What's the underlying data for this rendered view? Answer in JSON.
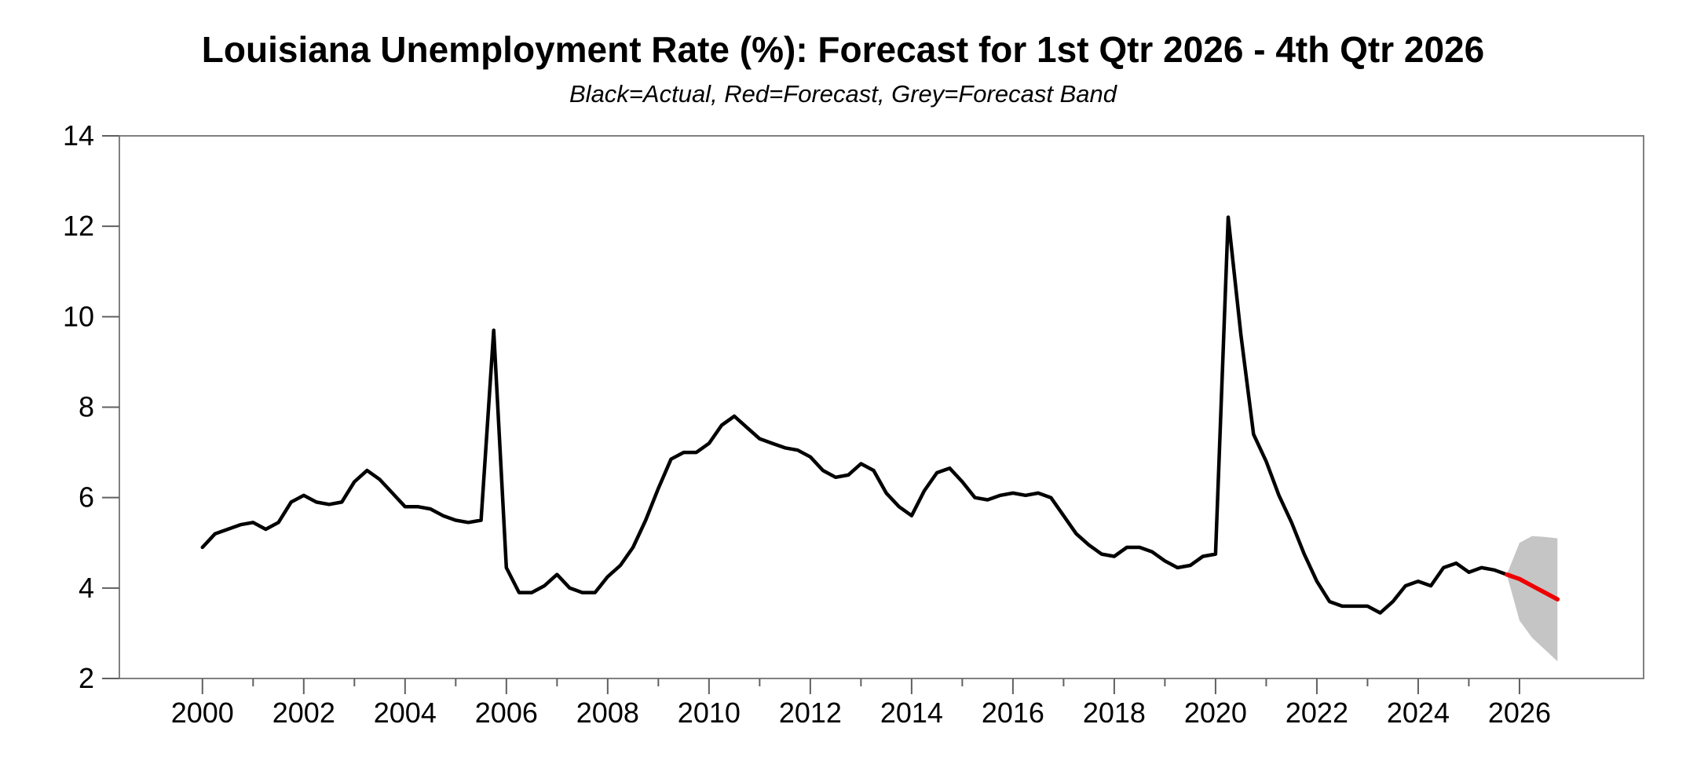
{
  "title": "Louisiana Unemployment Rate (%): Forecast for 1st Qtr 2026 - 4th Qtr 2026",
  "subtitle": "Black=Actual, Red=Forecast, Grey=Forecast Band",
  "colors": {
    "actual_line": "#000000",
    "forecast_line": "#ee0000",
    "forecast_band": "#c5c5c5",
    "frame": "#808080",
    "tick": "#606060",
    "label": "#000000",
    "background": "#ffffff"
  },
  "chart_data": {
    "type": "line",
    "title": "Louisiana Unemployment Rate (%): Forecast for 1st Qtr 2026 - 4th Qtr 2026",
    "subtitle": "Black=Actual, Red=Forecast, Grey=Forecast Band",
    "xlabel": "",
    "ylabel": "",
    "xlim": [
      1998.36,
      2028.45
    ],
    "ylim": [
      2,
      14
    ],
    "y_ticks": [
      2,
      4,
      6,
      8,
      10,
      12,
      14
    ],
    "y_tick_labels": [
      "2",
      "4",
      "6",
      "8",
      "10",
      "12",
      "14"
    ],
    "x_major_ticks": [
      2000,
      2002,
      2004,
      2006,
      2008,
      2010,
      2012,
      2014,
      2016,
      2018,
      2020,
      2022,
      2024,
      2026
    ],
    "x_major_tick_labels": [
      "2000",
      "2002",
      "2004",
      "2006",
      "2008",
      "2010",
      "2012",
      "2014",
      "2016",
      "2018",
      "2020",
      "2022",
      "2024",
      "2026"
    ],
    "x_minor_ticks": [
      2001,
      2003,
      2005,
      2007,
      2009,
      2011,
      2013,
      2015,
      2017,
      2019,
      2021,
      2023,
      2025
    ],
    "grid": false,
    "legend_position": "none",
    "frequency": "quarterly",
    "series": [
      {
        "name": "Actual",
        "role": "actual",
        "color_key": "actual_line",
        "start_year": 2000,
        "start_quarter": 1,
        "values": [
          4.9,
          5.2,
          5.3,
          5.4,
          5.45,
          5.3,
          5.45,
          5.9,
          6.05,
          5.9,
          5.85,
          5.9,
          6.35,
          6.6,
          6.4,
          6.1,
          5.8,
          5.8,
          5.75,
          5.6,
          5.5,
          5.45,
          5.5,
          9.7,
          4.45,
          3.9,
          3.9,
          4.05,
          4.3,
          4.0,
          3.9,
          3.9,
          4.25,
          4.5,
          4.9,
          5.5,
          6.2,
          6.85,
          7.0,
          7.0,
          7.2,
          7.6,
          7.8,
          7.55,
          7.3,
          7.2,
          7.1,
          7.05,
          6.9,
          6.6,
          6.45,
          6.5,
          6.75,
          6.6,
          6.1,
          5.8,
          5.6,
          6.15,
          6.55,
          6.65,
          6.35,
          6.0,
          5.95,
          6.05,
          6.1,
          6.05,
          6.1,
          6.0,
          5.6,
          5.2,
          4.95,
          4.75,
          4.7,
          4.9,
          4.9,
          4.8,
          4.6,
          4.45,
          4.5,
          4.7,
          4.75,
          12.2,
          9.6,
          7.4,
          6.8,
          6.05,
          5.45,
          4.75,
          4.15,
          3.7,
          3.6,
          3.6,
          3.6,
          3.45,
          3.7,
          4.05,
          4.15,
          4.05,
          4.45,
          4.55,
          4.35,
          4.45,
          4.4,
          4.3
        ],
        "notable_points": {
          "katrina_spike_2005Q4": 9.7,
          "covid_spike_2020Q2": 12.2,
          "last_actual_2025Q4": 4.3
        }
      },
      {
        "name": "Forecast",
        "role": "forecast",
        "color_key": "forecast_line",
        "start_year": 2025,
        "start_quarter": 4,
        "periods": [
          "2025Q4",
          "2026Q1",
          "2026Q2",
          "2026Q3",
          "2026Q4"
        ],
        "values": [
          4.3,
          4.2,
          4.05,
          3.9,
          3.75
        ]
      },
      {
        "name": "Forecast band upper",
        "role": "band-upper",
        "color_key": "forecast_band",
        "start_year": 2025,
        "start_quarter": 4,
        "periods": [
          "2025Q4",
          "2026Q1",
          "2026Q2",
          "2026Q3",
          "2026Q4"
        ],
        "values": [
          4.3,
          5.0,
          5.15,
          5.13,
          5.1
        ]
      },
      {
        "name": "Forecast band lower",
        "role": "band-lower",
        "color_key": "forecast_band",
        "start_year": 2025,
        "start_quarter": 4,
        "periods": [
          "2025Q4",
          "2026Q1",
          "2026Q2",
          "2026Q3",
          "2026Q4"
        ],
        "values": [
          4.3,
          3.28,
          2.9,
          2.64,
          2.38
        ]
      }
    ]
  }
}
